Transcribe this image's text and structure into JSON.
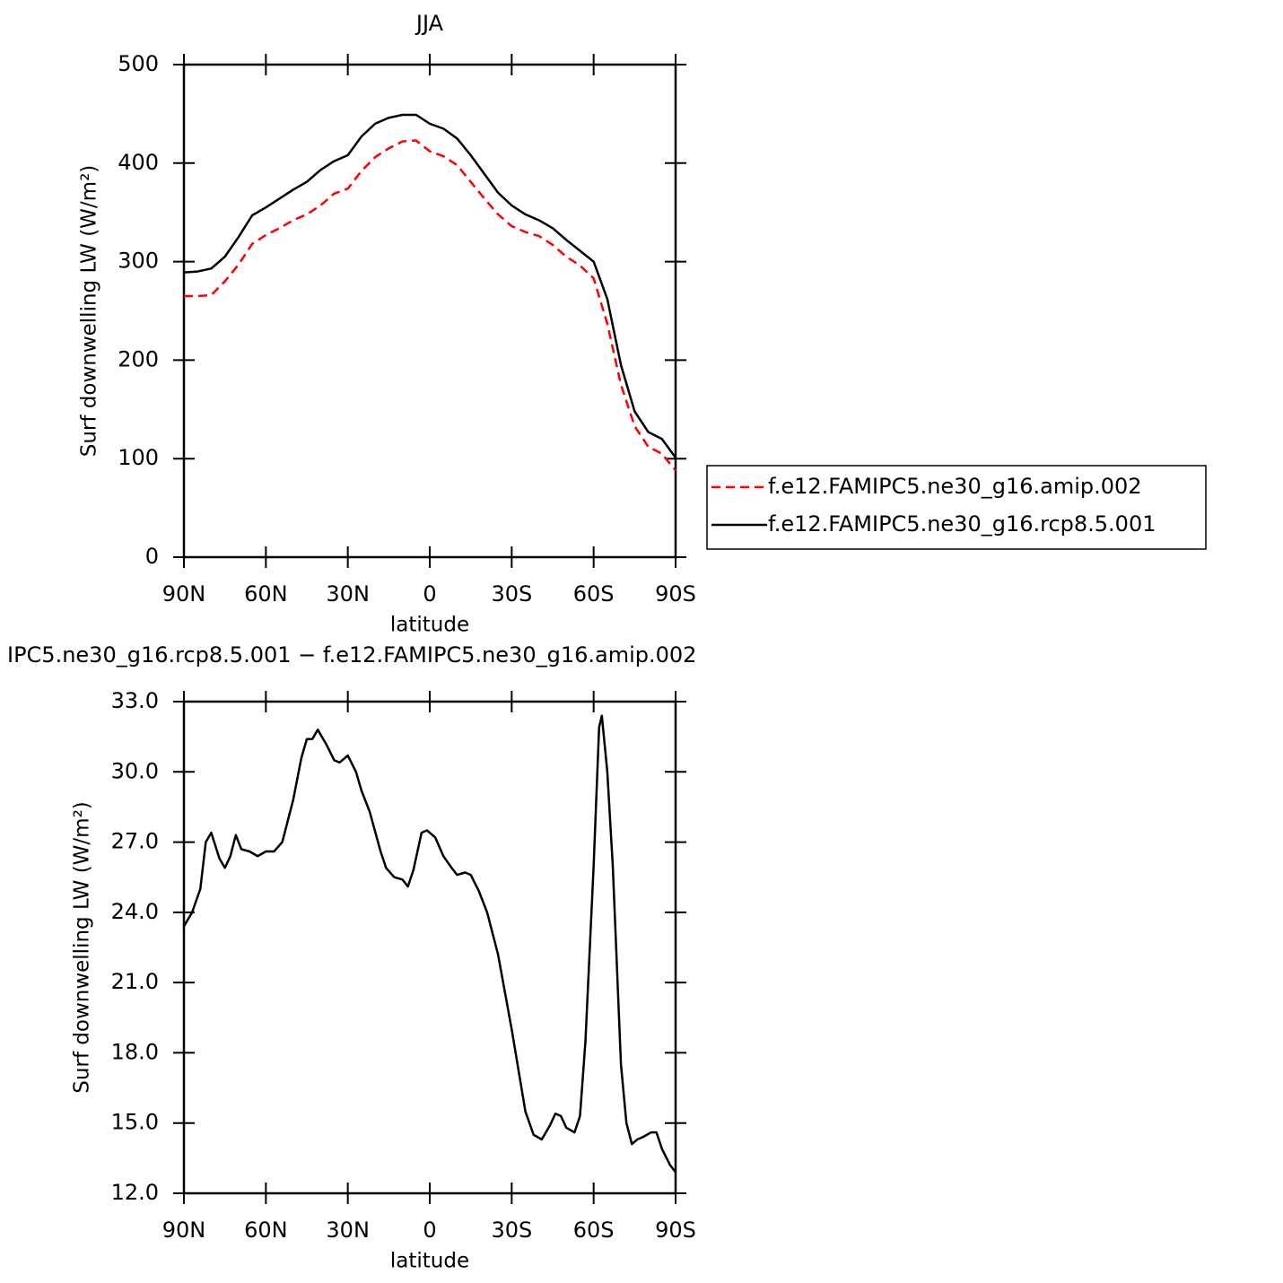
{
  "chart_data": [
    {
      "type": "line",
      "title": "JJA",
      "x_label": "latitude",
      "y_label": "Surf downwelling LW (W/m²)",
      "x": [
        90,
        85,
        80,
        75,
        70,
        65,
        60,
        55,
        50,
        45,
        40,
        35,
        30,
        25,
        20,
        15,
        10,
        5,
        0,
        -5,
        -10,
        -15,
        -20,
        -25,
        -30,
        -35,
        -40,
        -45,
        -50,
        -55,
        -60,
        -65,
        -70,
        -75,
        -80,
        -85,
        -90
      ],
      "series": [
        {
          "name": "f.e12.FAMIPC5.ne30_g16.amip.002",
          "color": "#ff0000",
          "linestyle": "dashed",
          "values": [
            265,
            265,
            266,
            280,
            297,
            318,
            327,
            334,
            342,
            348,
            357,
            369,
            374,
            392,
            406,
            415,
            422,
            423,
            412,
            407,
            398,
            381,
            364,
            348,
            336,
            330,
            326,
            317,
            305,
            296,
            283,
            237,
            175,
            133,
            112,
            105,
            88
          ]
        },
        {
          "name": "f.e12.FAMIPC5.ne30_g16.rcp8.5.001",
          "color": "#000000",
          "linestyle": "solid",
          "values": [
            289,
            290,
            293,
            305,
            325,
            347,
            355,
            364,
            373,
            381,
            393,
            402,
            408,
            427,
            440,
            446,
            449,
            449,
            440,
            435,
            425,
            408,
            389,
            370,
            357,
            348,
            342,
            334,
            322,
            311,
            300,
            262,
            195,
            148,
            127,
            120,
            101
          ]
        }
      ],
      "xlim": [
        90,
        -90
      ],
      "xticks": [
        {
          "value": 90,
          "label": "90N"
        },
        {
          "value": 60,
          "label": "60N"
        },
        {
          "value": 30,
          "label": "30N"
        },
        0,
        {
          "value": -30,
          "label": "30S"
        },
        {
          "value": -60,
          "label": "60S"
        },
        {
          "value": -90,
          "label": "90S"
        }
      ],
      "ylim": [
        0,
        500
      ],
      "yticks": [
        0,
        100,
        200,
        300,
        400,
        500
      ]
    },
    {
      "type": "line",
      "title": "IPC5.ne30_g16.rcp8.5.001 − f.e12.FAMIPC5.ne30_g16.amip.002",
      "x_label": "latitude",
      "y_label": "Surf downwelling LW (W/m²)",
      "x": [
        90,
        87,
        84,
        82,
        80,
        77,
        75,
        73,
        71,
        69,
        66,
        63,
        60,
        57,
        54,
        50,
        47,
        45,
        43,
        41,
        38,
        35,
        33,
        30,
        27,
        25,
        22,
        18,
        16,
        13,
        10,
        8,
        6,
        3,
        1,
        -2,
        -5,
        -8,
        -10,
        -13,
        -15,
        -18,
        -21,
        -25,
        -30,
        -35,
        -38,
        -41,
        -44,
        -46,
        -48,
        -50,
        -53,
        -55,
        -57,
        -60,
        -62,
        -63,
        -65,
        -67,
        -70,
        -72,
        -74,
        -76,
        -78,
        -81,
        -83,
        -85,
        -88,
        -90
      ],
      "series": [
        {
          "color": "#000000",
          "linestyle": "solid",
          "values": [
            23.4,
            24.0,
            25.0,
            27.0,
            27.4,
            26.3,
            25.9,
            26.4,
            27.3,
            26.7,
            26.6,
            26.4,
            26.6,
            26.6,
            27.0,
            28.8,
            30.6,
            31.4,
            31.4,
            31.8,
            31.2,
            30.5,
            30.4,
            30.7,
            30.0,
            29.2,
            28.3,
            26.6,
            25.9,
            25.5,
            25.4,
            25.1,
            25.8,
            27.4,
            27.5,
            27.2,
            26.4,
            25.9,
            25.6,
            25.7,
            25.6,
            24.9,
            24.0,
            22.2,
            19.0,
            15.5,
            14.5,
            14.3,
            14.9,
            15.4,
            15.3,
            14.8,
            14.6,
            15.3,
            18.5,
            26.0,
            31.9,
            32.4,
            30.0,
            26.0,
            17.5,
            15.0,
            14.1,
            14.3,
            14.4,
            14.6,
            14.6,
            13.9,
            13.2,
            12.9
          ]
        }
      ],
      "xlim": [
        90,
        -90
      ],
      "xticks": [
        {
          "value": 90,
          "label": "90N"
        },
        {
          "value": 60,
          "label": "60N"
        },
        {
          "value": 30,
          "label": "30N"
        },
        0,
        {
          "value": -30,
          "label": "30S"
        },
        {
          "value": -60,
          "label": "60S"
        },
        {
          "value": -90,
          "label": "90S"
        }
      ],
      "ylim": [
        12,
        33
      ],
      "yticks": [
        {
          "value": 12,
          "label": "12.0"
        },
        {
          "value": 15,
          "label": "15.0"
        },
        {
          "value": 18,
          "label": "18.0"
        },
        {
          "value": 21,
          "label": "21.0"
        },
        {
          "value": 24,
          "label": "24.0"
        },
        {
          "value": 27,
          "label": "27.0"
        },
        {
          "value": 30,
          "label": "30.0"
        },
        {
          "value": 33,
          "label": "33.0"
        }
      ]
    }
  ]
}
